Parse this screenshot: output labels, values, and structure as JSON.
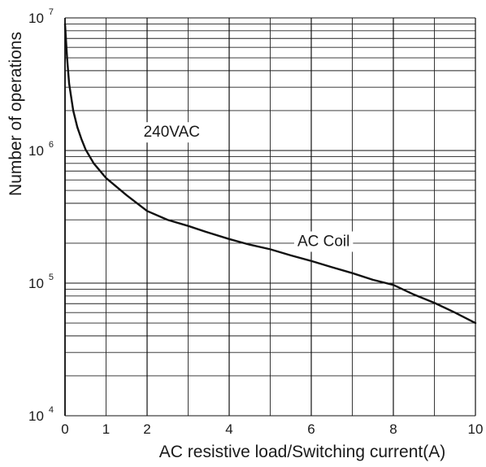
{
  "chart_data": {
    "type": "line",
    "title": "",
    "xlabel": "AC resistive load/Switching current(A)",
    "ylabel": "Number of operations",
    "xlim": [
      0,
      10
    ],
    "ylim": [
      10000,
      10000000
    ],
    "yscale": "log",
    "grid": true,
    "x_ticks": [
      0,
      2,
      4,
      6,
      8,
      10
    ],
    "x_tick_labels": [
      "0",
      "2",
      "4",
      "6",
      "8",
      "10"
    ],
    "x_minor_ticks": [
      1,
      3,
      5,
      7,
      9
    ],
    "x_minor_tick_labels": [
      "1",
      "",
      "",
      "",
      ""
    ],
    "y_ticks": [
      {
        "base": "10",
        "exp": "4",
        "value": 10000
      },
      {
        "base": "10",
        "exp": "5",
        "value": 100000
      },
      {
        "base": "10",
        "exp": "6",
        "value": 1000000
      },
      {
        "base": "10",
        "exp": "7",
        "value": 10000000
      }
    ],
    "annotations": [
      {
        "text": "240VAC",
        "x": 2.6,
        "y": 1400000
      },
      {
        "text": "AC Coil",
        "x": 6.3,
        "y": 210000
      }
    ],
    "series": [
      {
        "name": "",
        "x": [
          0.0,
          0.05,
          0.1,
          0.2,
          0.3,
          0.4,
          0.5,
          0.7,
          1.0,
          1.5,
          2.0,
          2.5,
          3.0,
          3.5,
          4.0,
          4.5,
          5.0,
          5.5,
          6.0,
          6.5,
          7.0,
          7.5,
          8.0,
          8.5,
          9.0,
          9.5,
          10.0
        ],
        "y": [
          9000000,
          5000000,
          3200000,
          2000000,
          1500000,
          1220000,
          1020000,
          800000,
          620000,
          460000,
          350000,
          300000,
          270000,
          240000,
          215000,
          195000,
          180000,
          162000,
          147000,
          132000,
          119000,
          106000,
          97000,
          82000,
          71000,
          60000,
          50000
        ]
      }
    ]
  }
}
